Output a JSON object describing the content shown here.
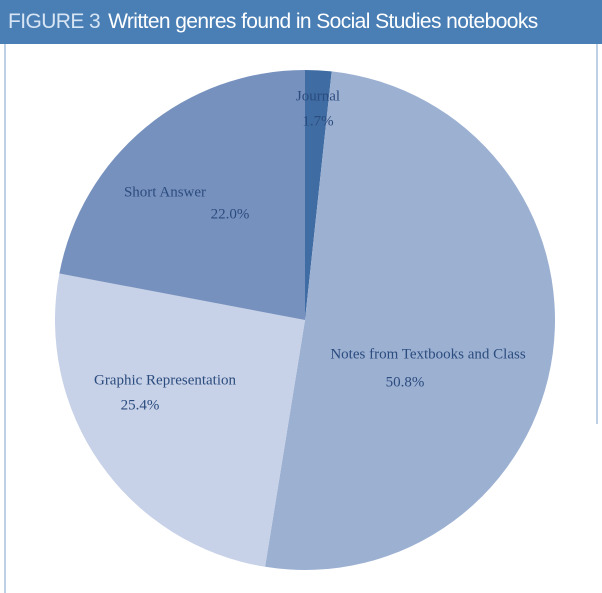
{
  "header": {
    "label": "FIGURE 3",
    "title": "Written genres found in Social Studies notebooks"
  },
  "chart_data": {
    "type": "pie",
    "categories": [
      "Journal",
      "Notes from Textbooks and Class",
      "Graphic Representation",
      "Short Answer"
    ],
    "values": [
      1.7,
      50.8,
      25.4,
      22.0
    ],
    "value_labels": [
      "1.7%",
      "50.8%",
      "25.4%",
      "22.0%"
    ],
    "colors": [
      "#3f6ca3",
      "#9cb0d2",
      "#c7d1e7",
      "#7791be"
    ]
  }
}
